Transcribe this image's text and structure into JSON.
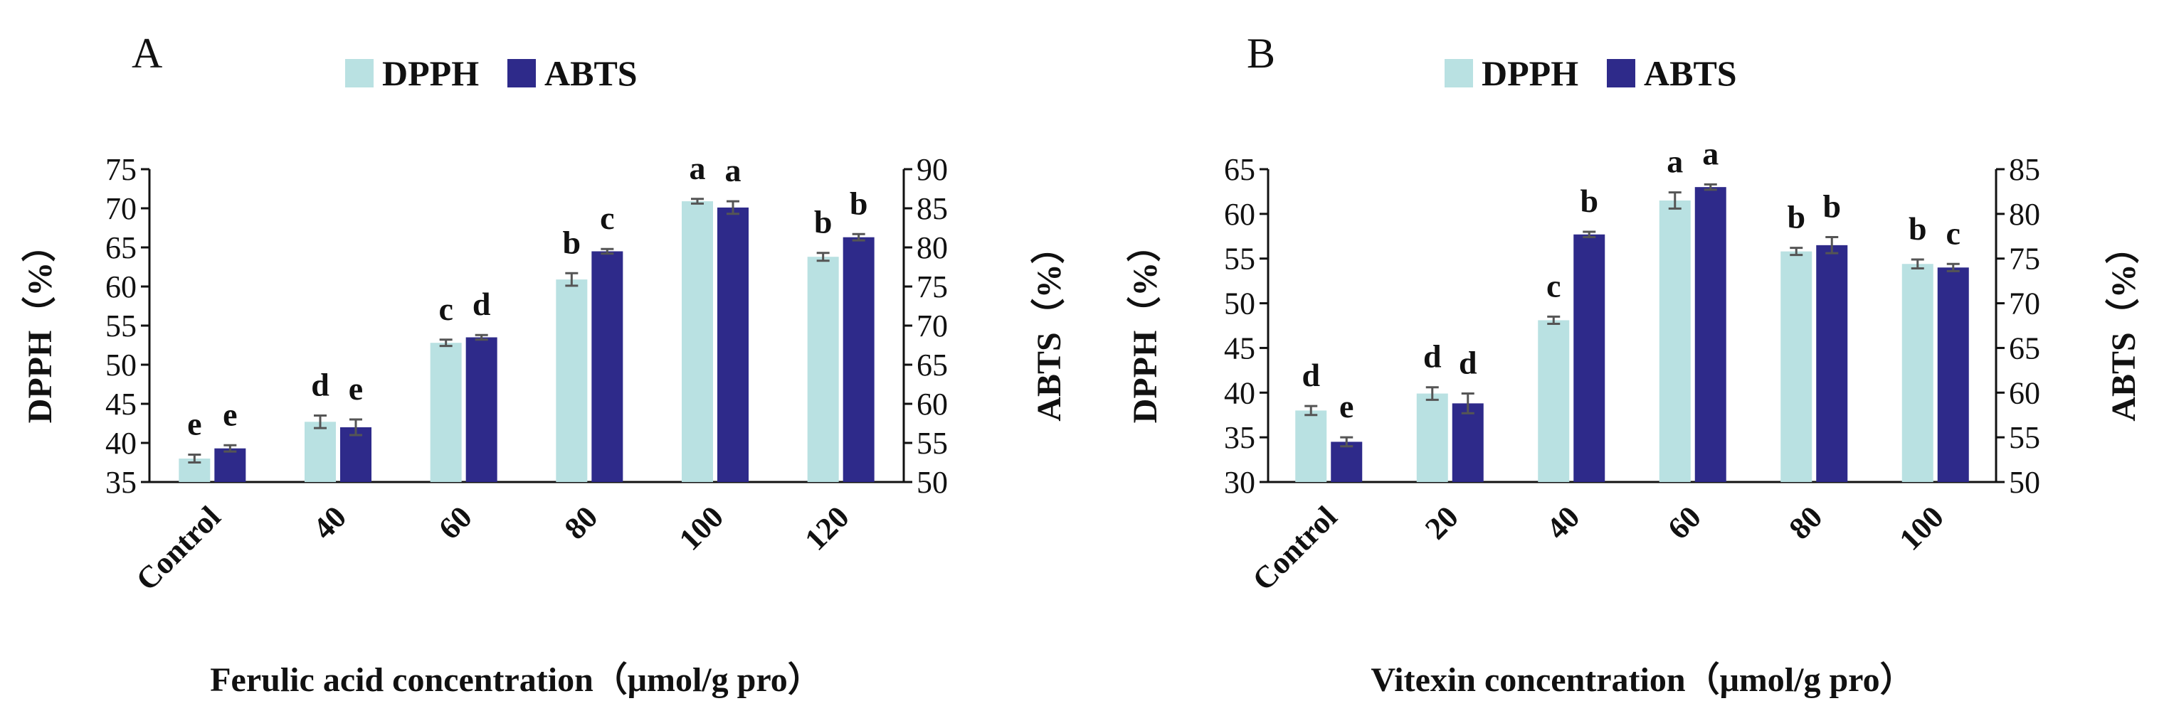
{
  "chart_data": [
    {
      "type": "bar",
      "panel": "A",
      "legend": [
        "DPPH",
        "ABTS"
      ],
      "categories": [
        "Control",
        "40",
        "60",
        "80",
        "100",
        "120"
      ],
      "series": [
        {
          "name": "DPPH",
          "axis": "left",
          "color": "#b9e1e2",
          "values": [
            38.0,
            42.7,
            52.8,
            60.9,
            70.9,
            63.8
          ],
          "errors": [
            0.5,
            0.8,
            0.4,
            0.8,
            0.3,
            0.5
          ],
          "letters": [
            "e",
            "d",
            "c",
            "b",
            "a",
            "b"
          ]
        },
        {
          "name": "ABTS",
          "axis": "right",
          "color": "#2e2a8a",
          "values": [
            54.3,
            57.0,
            68.5,
            79.5,
            85.1,
            81.3
          ],
          "errors": [
            0.4,
            1.0,
            0.3,
            0.3,
            0.8,
            0.4
          ],
          "letters": [
            "e",
            "e",
            "d",
            "c",
            "a",
            "b"
          ]
        }
      ],
      "ylabel": "DPPH（%）",
      "ylabel2": "ABTS（%）",
      "xlabel": "Ferulic acid concentration（μmol/g pro）",
      "ylim": [
        35,
        75
      ],
      "yticks": [
        35,
        40,
        45,
        50,
        55,
        60,
        65,
        70,
        75
      ],
      "y2lim": [
        50,
        90
      ],
      "y2ticks": [
        50,
        55,
        60,
        65,
        70,
        75,
        80,
        85,
        90
      ],
      "legend_position": "top-center",
      "grid": false
    },
    {
      "type": "bar",
      "panel": "B",
      "legend": [
        "DPPH",
        "ABTS"
      ],
      "categories": [
        "Control",
        "20",
        "40",
        "60",
        "80",
        "100"
      ],
      "series": [
        {
          "name": "DPPH",
          "axis": "left",
          "color": "#b9e1e2",
          "values": [
            38.0,
            39.9,
            48.1,
            61.5,
            55.8,
            54.4
          ],
          "errors": [
            0.5,
            0.7,
            0.4,
            0.9,
            0.4,
            0.5
          ],
          "letters": [
            "d",
            "d",
            "c",
            "a",
            "b",
            "b"
          ]
        },
        {
          "name": "ABTS",
          "axis": "right",
          "color": "#2e2a8a",
          "values": [
            54.5,
            58.8,
            77.7,
            83.0,
            76.5,
            74.0
          ],
          "errors": [
            0.5,
            1.1,
            0.3,
            0.3,
            0.9,
            0.4
          ],
          "letters": [
            "e",
            "d",
            "b",
            "a",
            "b",
            "c"
          ]
        }
      ],
      "ylabel": "DPPH（%）",
      "ylabel2": "ABTS（%）",
      "xlabel": "Vitexin concentration（μmol/g pro）",
      "ylim": [
        30,
        65
      ],
      "yticks": [
        30,
        35,
        40,
        45,
        50,
        55,
        60,
        65
      ],
      "y2lim": [
        50,
        85
      ],
      "y2ticks": [
        50,
        55,
        60,
        65,
        70,
        75,
        80,
        85
      ],
      "legend_position": "top-center",
      "grid": false
    }
  ]
}
